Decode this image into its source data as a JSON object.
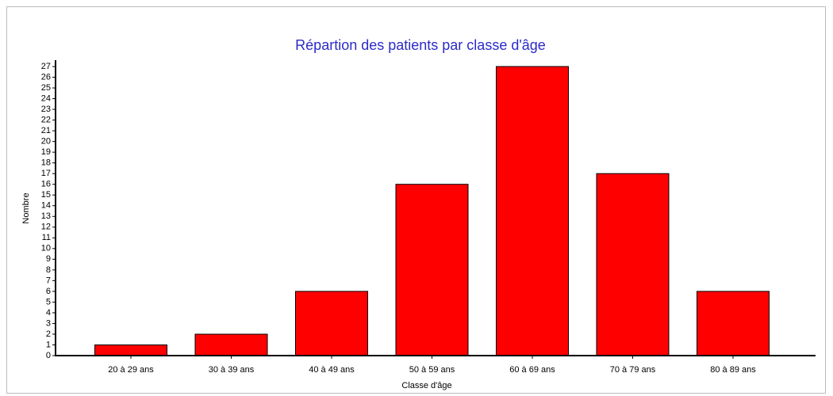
{
  "chart_data": {
    "type": "bar",
    "title": "Répartion des patients par classe d'âge",
    "x_label": "Classe d'âge",
    "y_label": "Nombre",
    "categories": [
      "20 à 29 ans",
      "30 à 39 ans",
      "40 à 49 ans",
      "50 à 59 ans",
      "60 à 69 ans",
      "70 à 79 ans",
      "80 à 89 ans"
    ],
    "values": [
      1,
      2,
      6,
      16,
      27,
      17,
      6
    ],
    "color": "#ff0000",
    "ylim": [
      0,
      27
    ],
    "yticks": [
      0,
      1,
      2,
      3,
      4,
      5,
      6,
      7,
      8,
      9,
      10,
      11,
      12,
      13,
      14,
      15,
      16,
      17,
      18,
      19,
      20,
      21,
      22,
      23,
      24,
      25,
      26,
      27
    ],
    "grid": false
  }
}
